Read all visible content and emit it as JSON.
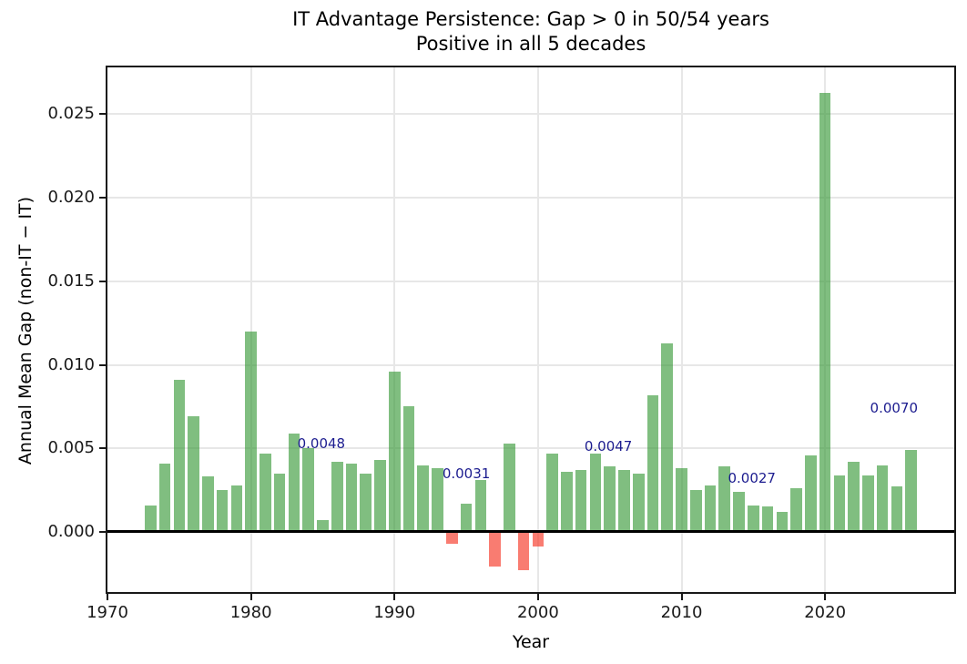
{
  "figure": {
    "title_line1": "IT Advantage Persistence: Gap > 0 in 50/54 years",
    "title_line2": "Positive in all 5 decades",
    "xlabel": "Year",
    "ylabel": "Annual Mean Gap (non-IT − IT)"
  },
  "chart_data": {
    "type": "bar",
    "title": "IT Advantage Persistence: Gap > 0 in 50/54 years\nPositive in all 5 decades",
    "xlabel": "Year",
    "ylabel": "Annual Mean Gap (non-IT − IT)",
    "x_start_year": 1973,
    "x": [
      1973,
      1974,
      1975,
      1976,
      1977,
      1978,
      1979,
      1980,
      1981,
      1982,
      1983,
      1984,
      1985,
      1986,
      1987,
      1988,
      1989,
      1990,
      1991,
      1992,
      1993,
      1994,
      1995,
      1996,
      1997,
      1998,
      1999,
      2000,
      2001,
      2002,
      2003,
      2004,
      2005,
      2006,
      2007,
      2008,
      2009,
      2010,
      2011,
      2012,
      2013,
      2014,
      2015,
      2016,
      2017,
      2018,
      2019,
      2020,
      2021,
      2022,
      2023,
      2024,
      2025,
      2026
    ],
    "values": [
      0.0016,
      0.0041,
      0.0091,
      0.0069,
      0.0033,
      0.0025,
      0.0028,
      0.012,
      0.0047,
      0.0035,
      0.0059,
      0.005,
      0.0007,
      0.0042,
      0.0041,
      0.0035,
      0.0043,
      0.0096,
      0.0075,
      0.004,
      0.0038,
      -0.0007,
      0.0017,
      0.0031,
      -0.0021,
      0.0053,
      -0.0023,
      -0.0009,
      0.0047,
      0.0036,
      0.0037,
      0.0047,
      0.0039,
      0.0037,
      0.0035,
      0.0082,
      0.0113,
      0.0038,
      0.0025,
      0.0028,
      0.0039,
      0.0024,
      0.0016,
      0.0015,
      0.0012,
      0.0026,
      0.0046,
      0.0263,
      0.0034,
      0.0042,
      0.0034,
      0.004,
      0.0027,
      0.0049
    ],
    "xlim": [
      1970,
      2029
    ],
    "ylim": [
      -0.0036,
      0.0278
    ],
    "xticks": [
      1970,
      1980,
      1990,
      2000,
      2010,
      2020
    ],
    "ytick_labels": [
      "0.000",
      "0.005",
      "0.010",
      "0.015",
      "0.020",
      "0.025"
    ],
    "ytick_values": [
      0.0,
      0.005,
      0.01,
      0.015,
      0.02,
      0.025
    ],
    "grid": true,
    "legend": false,
    "bar_color_positive": "rgba(50,150,50,0.62)",
    "bar_color_negative": "rgba(246,62,45,0.68)",
    "annotation_color": "#1c1c8f",
    "annotations": [
      {
        "label": "0.0048",
        "x": 1984.9,
        "y": 0.0053
      },
      {
        "label": "0.0031",
        "x": 1995.0,
        "y": 0.0035
      },
      {
        "label": "0.0047",
        "x": 2004.9,
        "y": 0.0051
      },
      {
        "label": "0.0027",
        "x": 2014.9,
        "y": 0.0032
      },
      {
        "label": "0.0070",
        "x": 2024.8,
        "y": 0.0074
      }
    ]
  }
}
